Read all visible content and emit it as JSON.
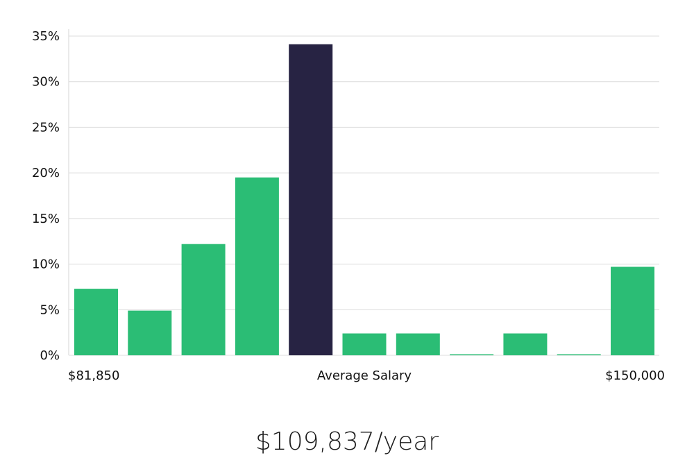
{
  "chart_data": {
    "type": "bar",
    "y_ticks": [
      "0%",
      "5%",
      "10%",
      "15%",
      "20%",
      "25%",
      "30%",
      "35%"
    ],
    "ylim": [
      0,
      35
    ],
    "values": [
      7.3,
      4.9,
      12.2,
      19.5,
      34.1,
      2.4,
      2.4,
      0.05,
      2.4,
      0.05,
      9.7
    ],
    "highlight_index": 4,
    "bar_color": "#2bbd75",
    "highlight_color": "#272343",
    "grid": true,
    "x_labels": {
      "left": "$81,850",
      "center": "Average Salary",
      "right": "$150,000"
    },
    "summary": "$109,837/year"
  }
}
